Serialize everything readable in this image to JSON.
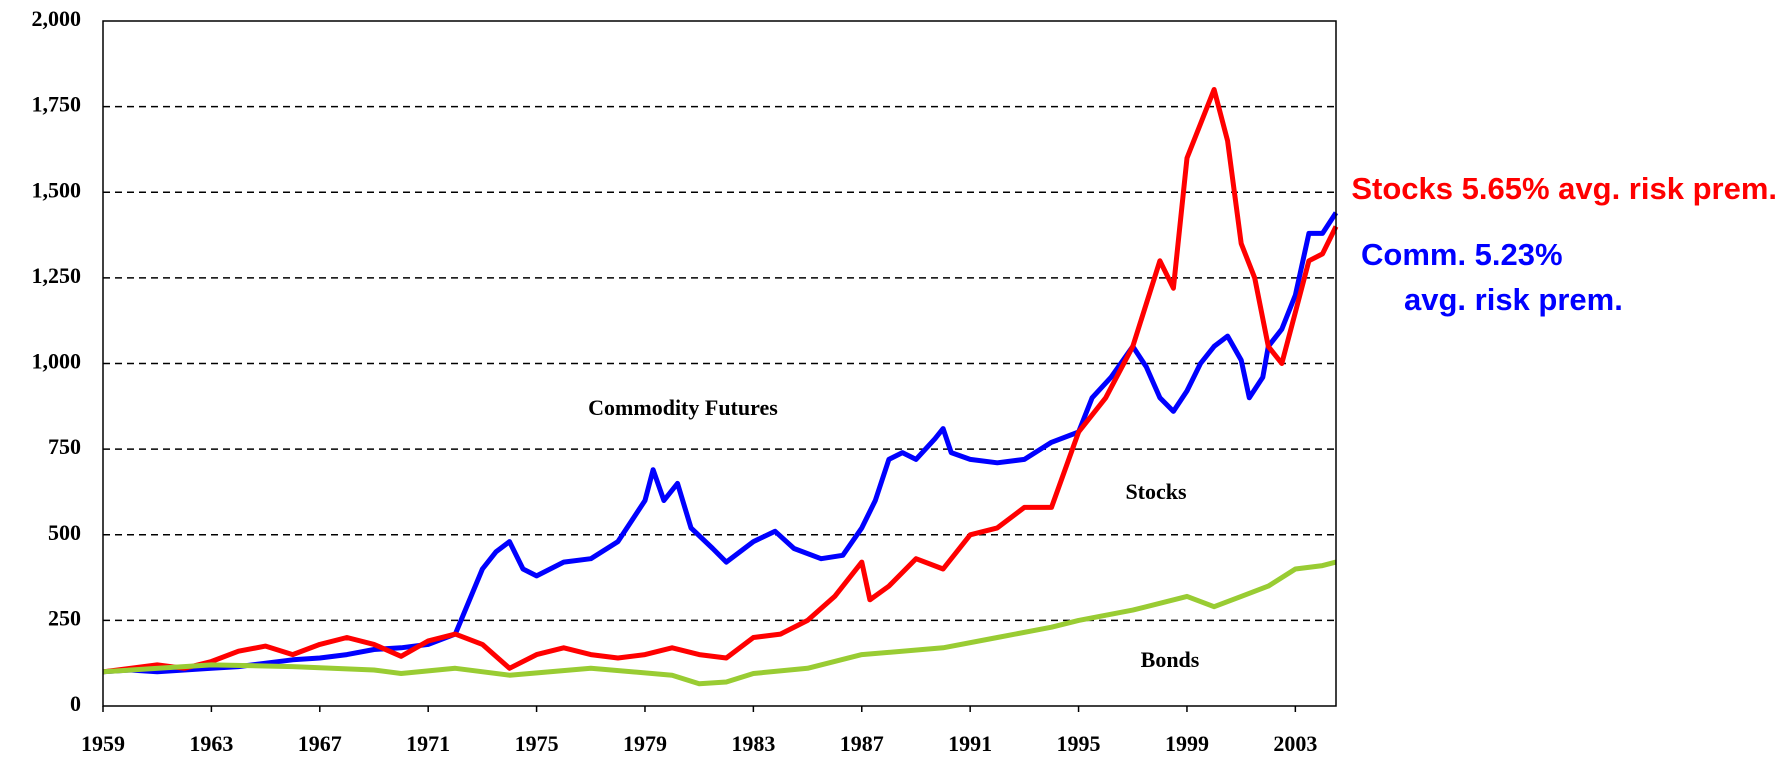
{
  "chart_data": {
    "type": "line",
    "xlim": [
      1959,
      2004.5
    ],
    "xticks": [
      1959,
      1963,
      1967,
      1971,
      1975,
      1979,
      1983,
      1987,
      1991,
      1995,
      1999,
      2003
    ],
    "ylim": [
      0,
      2000
    ],
    "yticks": [
      0,
      250,
      500,
      750,
      {
        "value": 1000,
        "label": "1,000"
      },
      {
        "value": 1250,
        "label": "1,250"
      },
      {
        "value": 1500,
        "label": "1,500"
      },
      {
        "value": 1750,
        "label": "1,750"
      },
      {
        "value": 2000,
        "label": "2,000"
      }
    ],
    "grid": true,
    "series": [
      {
        "name": "Commodity Futures",
        "color": "#0000ff",
        "x": [
          1959,
          1960,
          1961,
          1962,
          1963,
          1964,
          1965,
          1966,
          1967,
          1968,
          1969,
          1970,
          1971,
          1972,
          1973,
          1973.5,
          1974,
          1974.5,
          1975,
          1976,
          1977,
          1978,
          1979,
          1979.3,
          1979.7,
          1980.2,
          1980.7,
          1981.5,
          1982,
          1983,
          1983.8,
          1984.5,
          1985.5,
          1986.3,
          1987,
          1987.5,
          1988,
          1988.5,
          1989,
          1989.7,
          1990,
          1990.3,
          1991,
          1992,
          1993,
          1994,
          1995,
          1995.5,
          1996.2,
          1997,
          1997.5,
          1998,
          1998.5,
          1999,
          1999.5,
          2000,
          2000.5,
          2001,
          2001.3,
          2001.8,
          2002,
          2002.5,
          2003,
          2003.5,
          2004,
          2004.5
        ],
        "values": [
          100,
          105,
          100,
          105,
          110,
          115,
          125,
          135,
          140,
          150,
          165,
          170,
          180,
          210,
          400,
          450,
          480,
          400,
          380,
          420,
          430,
          480,
          600,
          690,
          600,
          650,
          520,
          460,
          420,
          480,
          510,
          460,
          430,
          440,
          520,
          600,
          720,
          740,
          720,
          780,
          810,
          740,
          720,
          710,
          720,
          770,
          800,
          900,
          960,
          1050,
          990,
          900,
          860,
          920,
          1000,
          1050,
          1080,
          1010,
          900,
          960,
          1050,
          1100,
          1200,
          1380,
          1380,
          1440
        ]
      },
      {
        "name": "Stocks",
        "color": "#ff0000",
        "x": [
          1959,
          1961,
          1962,
          1963,
          1964,
          1965,
          1966,
          1967,
          1968,
          1969,
          1970,
          1971,
          1972,
          1973,
          1974,
          1975,
          1976,
          1977,
          1978,
          1979,
          1980,
          1981,
          1982,
          1983,
          1984,
          1985,
          1986,
          1987,
          1987.3,
          1988,
          1989,
          1990,
          1991,
          1992,
          1993,
          1994,
          1995,
          1996,
          1997,
          1998,
          1998.5,
          1999,
          2000,
          2000.5,
          2001,
          2001.5,
          2002,
          2002.5,
          2003,
          2003.5,
          2004,
          2004.5
        ],
        "values": [
          100,
          120,
          110,
          130,
          160,
          175,
          150,
          180,
          200,
          180,
          145,
          190,
          210,
          180,
          110,
          150,
          170,
          150,
          140,
          150,
          170,
          150,
          140,
          200,
          210,
          250,
          320,
          420,
          310,
          350,
          430,
          400,
          500,
          520,
          580,
          580,
          800,
          900,
          1050,
          1300,
          1220,
          1600,
          1800,
          1650,
          1350,
          1250,
          1050,
          1000,
          1150,
          1300,
          1320,
          1400
        ]
      },
      {
        "name": "Bonds",
        "color": "#99cc33",
        "x": [
          1959,
          1963,
          1966,
          1969,
          1970,
          1972,
          1974,
          1977,
          1980,
          1981,
          1982,
          1983,
          1985,
          1987,
          1990,
          1992,
          1994,
          1995,
          1997,
          1999,
          2000,
          2001,
          2002,
          2003,
          2004,
          2004.5
        ],
        "values": [
          100,
          120,
          115,
          105,
          95,
          110,
          90,
          110,
          90,
          65,
          70,
          95,
          110,
          150,
          170,
          200,
          230,
          250,
          280,
          320,
          290,
          320,
          350,
          400,
          410,
          420
        ]
      }
    ],
    "annotations": [
      {
        "text": "Stocks 5.65% avg. risk prem.",
        "color": "#ff0000"
      },
      {
        "text": "Comm. 5.23%",
        "color": "#0000ff"
      },
      {
        "text": "avg. risk prem.",
        "color": "#0000ff"
      }
    ]
  }
}
